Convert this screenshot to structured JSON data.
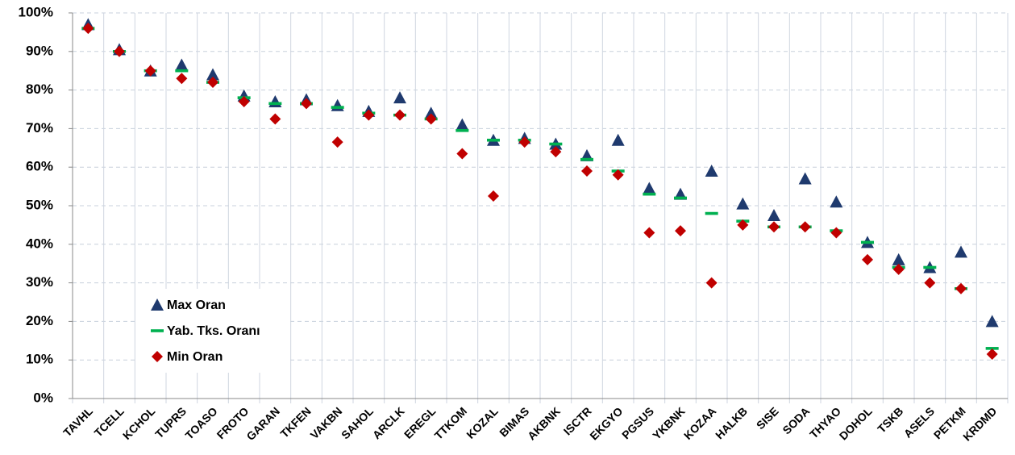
{
  "chart_data": {
    "type": "scatter",
    "categories": [
      "TAVHL",
      "TCELL",
      "KCHOL",
      "TUPRS",
      "TOASO",
      "FROTO",
      "GARAN",
      "TKFEN",
      "VAKBN",
      "SAHOL",
      "ARCLK",
      "EREGL",
      "TTKOM",
      "KOZAL",
      "BIMAS",
      "AKBNK",
      "ISCTR",
      "EKGYO",
      "PGSUS",
      "YKBNK",
      "KOZAA",
      "HALKB",
      "SISE",
      "SODA",
      "THYAO",
      "DOHOL",
      "TSKB",
      "ASELS",
      "PETKM",
      "KRDMD"
    ],
    "series": [
      {
        "name": "Max Oran",
        "color": "#1f3a6e",
        "marker": "triangle",
        "values": [
          97,
          90.5,
          85,
          86.5,
          84,
          78.5,
          77,
          77.5,
          76,
          74.5,
          78,
          74,
          71,
          67,
          67.5,
          66,
          63,
          67,
          54.5,
          53,
          59,
          50.5,
          47.5,
          57,
          51,
          40.5,
          36,
          34,
          38,
          20
        ]
      },
      {
        "name": "Yab. Tks. Oranı",
        "color": "#00b050",
        "marker": "dash",
        "values": [
          96,
          90,
          85,
          85,
          82,
          78,
          76.5,
          76.5,
          75.5,
          74,
          73.5,
          72.5,
          69.5,
          67,
          67,
          66,
          62,
          59,
          53,
          52,
          48,
          46,
          44.5,
          44.5,
          43.5,
          40.5,
          34,
          34,
          28.5,
          13
        ]
      },
      {
        "name": "Min Oran",
        "color": "#c00000",
        "marker": "diamond",
        "values": [
          96,
          90,
          85,
          83,
          82,
          77,
          72.5,
          76.5,
          66.5,
          73.5,
          73.5,
          72.5,
          63.5,
          52.5,
          66.5,
          64,
          59,
          58,
          43,
          43.5,
          30,
          45,
          44.5,
          44.5,
          43,
          36,
          33.5,
          30,
          28.5,
          11.5
        ]
      }
    ],
    "ylim": [
      0,
      100
    ],
    "yticks": [
      {
        "value": 0,
        "label": "0%"
      },
      {
        "value": 10,
        "label": "10%"
      },
      {
        "value": 20,
        "label": "20%"
      },
      {
        "value": 30,
        "label": "30%"
      },
      {
        "value": 40,
        "label": "40%"
      },
      {
        "value": 50,
        "label": "50%"
      },
      {
        "value": 60,
        "label": "60%"
      },
      {
        "value": 70,
        "label": "70%"
      },
      {
        "value": 80,
        "label": "80%"
      },
      {
        "value": 90,
        "label": "90%"
      },
      {
        "value": 100,
        "label": "100%"
      }
    ],
    "grid": true,
    "legend": "lower left"
  }
}
